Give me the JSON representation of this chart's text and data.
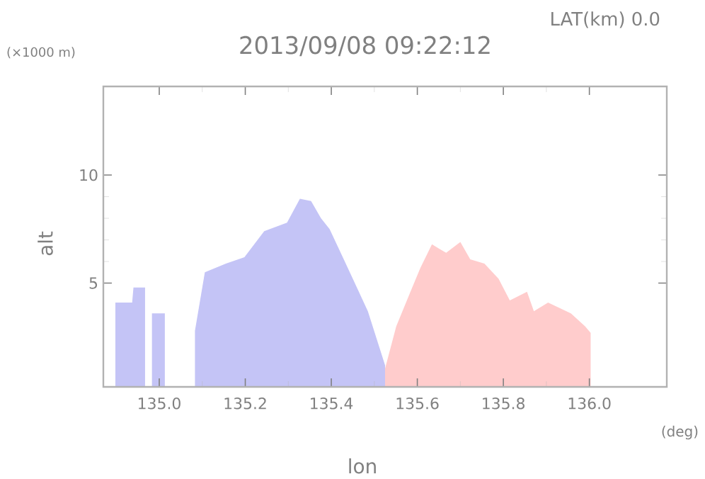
{
  "chart_data": {
    "type": "area",
    "title": "2013/09/08 09:22:12",
    "subtitle": "LAT(km) 0.0",
    "xlabel": "lon",
    "ylabel": "alt",
    "annotations": [
      "(×1000 m)",
      "(deg)"
    ],
    "xlim": [
      134.87,
      136.18
    ],
    "ylim": [
      0.2,
      14.1
    ],
    "xticks": [
      {
        "value": 135.0,
        "label": "135.0"
      },
      {
        "value": 135.2,
        "label": "135.2"
      },
      {
        "value": 135.4,
        "label": "135.4"
      },
      {
        "value": 135.6,
        "label": "135.6"
      },
      {
        "value": 135.8,
        "label": "135.8"
      },
      {
        "value": 136.0,
        "label": "136.0"
      }
    ],
    "yticks": [
      5,
      10
    ],
    "grid": false,
    "series": [
      {
        "color": "#c4c4f6",
        "x": [
          134.898,
          134.937,
          134.94,
          134.967,
          134.975,
          134.983,
          135.013,
          135.05,
          135.083,
          135.106,
          135.155,
          135.198,
          135.244,
          135.297,
          135.327,
          135.353,
          135.376,
          135.396,
          135.429,
          135.485,
          135.525
        ],
        "values": [
          4.1,
          4.1,
          4.8,
          4.8,
          null,
          3.6,
          3.6,
          null,
          2.8,
          5.5,
          5.9,
          6.2,
          7.4,
          7.8,
          8.9,
          8.8,
          8.0,
          7.5,
          6.1,
          3.7,
          1.2
        ]
      },
      {
        "color": "#ffcccc",
        "x": [
          135.525,
          135.551,
          135.584,
          135.607,
          135.634,
          135.65,
          135.667,
          135.7,
          135.723,
          135.756,
          135.789,
          135.815,
          135.855,
          135.871,
          135.904,
          135.957,
          135.99,
          136.003
        ],
        "values": [
          1.05,
          3.0,
          4.6,
          5.7,
          6.8,
          6.6,
          6.4,
          6.9,
          6.1,
          5.9,
          5.2,
          4.2,
          4.6,
          3.7,
          4.1,
          3.6,
          3.0,
          2.7
        ]
      }
    ]
  }
}
